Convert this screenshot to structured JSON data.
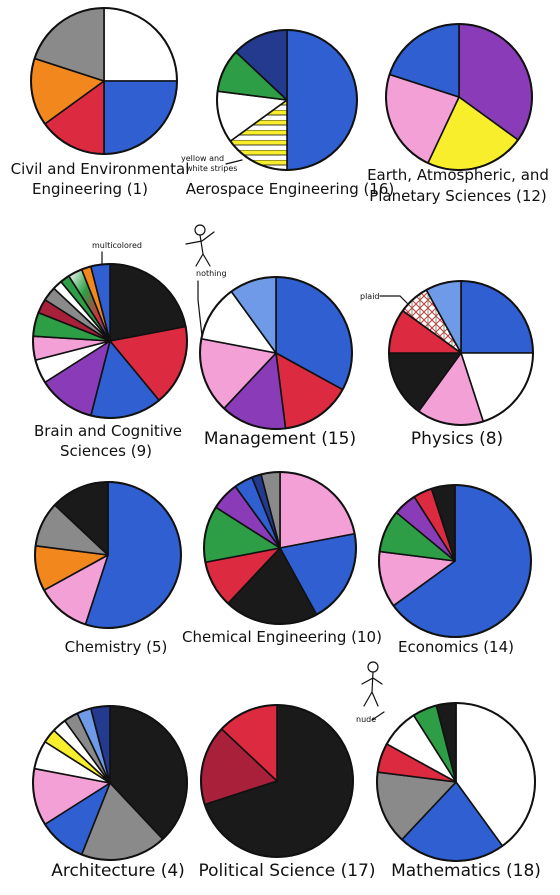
{
  "colors": {
    "white": "#ffffff",
    "gray": "#8a8a8a",
    "orange": "#f2871e",
    "red": "#dc2a40",
    "blue": "#2f5fd0",
    "navy": "#243a8e",
    "green": "#2d9e45",
    "pink": "#f2a0d6",
    "purple": "#8a3cb8",
    "yellow": "#f8ee2c",
    "black": "#1a1a1a",
    "maroon": "#a8203a",
    "lightblue": "#6f9ae8"
  },
  "chart_data": [
    {
      "type": "pie",
      "title": "Civil and Environmental",
      "subtitle": "Engineering (1)",
      "slices": [
        {
          "color": "white",
          "share": 0.25
        },
        {
          "color": "blue",
          "share": 0.25
        },
        {
          "color": "red",
          "share": 0.15
        },
        {
          "color": "orange",
          "share": 0.15
        },
        {
          "color": "gray",
          "share": 0.2
        }
      ]
    },
    {
      "type": "pie",
      "title": "Aerospace Engineering (16)",
      "subtitle": "",
      "annotations": [
        "yellow and",
        "white stripes"
      ],
      "slices": [
        {
          "color": "blue",
          "share": 0.5
        },
        {
          "color": "stripes",
          "share": 0.15
        },
        {
          "color": "white",
          "share": 0.12
        },
        {
          "color": "green",
          "share": 0.1
        },
        {
          "color": "navy",
          "share": 0.13
        }
      ]
    },
    {
      "type": "pie",
      "title": "Earth, Atmospheric, and",
      "subtitle": "Planetary Sciences (12)",
      "slices": [
        {
          "color": "purple",
          "share": 0.35
        },
        {
          "color": "yellow",
          "share": 0.22
        },
        {
          "color": "pink",
          "share": 0.23
        },
        {
          "color": "blue",
          "share": 0.2
        }
      ]
    },
    {
      "type": "pie",
      "title": "Brain and Cognitive",
      "subtitle": "Sciences (9)",
      "annotations": [
        "multicolored"
      ],
      "slices": [
        {
          "color": "black",
          "share": 0.22
        },
        {
          "color": "red",
          "share": 0.17
        },
        {
          "color": "blue",
          "share": 0.15
        },
        {
          "color": "purple",
          "share": 0.12
        },
        {
          "color": "white",
          "share": 0.05
        },
        {
          "color": "pink",
          "share": 0.05
        },
        {
          "color": "green",
          "share": 0.05
        },
        {
          "color": "maroon",
          "share": 0.03
        },
        {
          "color": "gray",
          "share": 0.03
        },
        {
          "color": "white",
          "share": 0.02
        },
        {
          "color": "green",
          "share": 0.02
        },
        {
          "color": "multicolored",
          "share": 0.03
        },
        {
          "color": "orange",
          "share": 0.02
        },
        {
          "color": "blue",
          "share": 0.04
        }
      ]
    },
    {
      "type": "pie",
      "title": "Management (15)",
      "subtitle": "",
      "annotations": [
        "nothing"
      ],
      "slices": [
        {
          "color": "blue",
          "share": 0.33
        },
        {
          "color": "red",
          "share": 0.15
        },
        {
          "color": "purple",
          "share": 0.14
        },
        {
          "color": "pink",
          "share": 0.16
        },
        {
          "color": "white",
          "share": 0.12
        },
        {
          "color": "lightblue",
          "share": 0.1
        }
      ]
    },
    {
      "type": "pie",
      "title": "Physics (8)",
      "subtitle": "",
      "annotations": [
        "plaid"
      ],
      "slices": [
        {
          "color": "blue",
          "share": 0.25
        },
        {
          "color": "white",
          "share": 0.2
        },
        {
          "color": "pink",
          "share": 0.15
        },
        {
          "color": "black",
          "share": 0.15
        },
        {
          "color": "red",
          "share": 0.1
        },
        {
          "color": "plaid",
          "share": 0.07
        },
        {
          "color": "lightblue",
          "share": 0.08
        }
      ]
    },
    {
      "type": "pie",
      "title": "Chemistry (5)",
      "subtitle": "",
      "slices": [
        {
          "color": "blue",
          "share": 0.55
        },
        {
          "color": "pink",
          "share": 0.12
        },
        {
          "color": "orange",
          "share": 0.1
        },
        {
          "color": "gray",
          "share": 0.1
        },
        {
          "color": "black",
          "share": 0.13
        }
      ]
    },
    {
      "type": "pie",
      "title": "Chemical Engineering (10)",
      "subtitle": "",
      "slices": [
        {
          "color": "pink",
          "share": 0.22
        },
        {
          "color": "blue",
          "share": 0.2
        },
        {
          "color": "black",
          "share": 0.2
        },
        {
          "color": "red",
          "share": 0.1
        },
        {
          "color": "green",
          "share": 0.12
        },
        {
          "color": "purple",
          "share": 0.06
        },
        {
          "color": "blue",
          "share": 0.04
        },
        {
          "color": "navy",
          "share": 0.02
        },
        {
          "color": "gray",
          "share": 0.04
        }
      ]
    },
    {
      "type": "pie",
      "title": "Economics (14)",
      "subtitle": "",
      "slices": [
        {
          "color": "blue",
          "share": 0.65
        },
        {
          "color": "pink",
          "share": 0.12
        },
        {
          "color": "green",
          "share": 0.09
        },
        {
          "color": "purple",
          "share": 0.05
        },
        {
          "color": "red",
          "share": 0.04
        },
        {
          "color": "black",
          "share": 0.05
        }
      ]
    },
    {
      "type": "pie",
      "title": "Architecture (4)",
      "subtitle": "",
      "slices": [
        {
          "color": "black",
          "share": 0.38
        },
        {
          "color": "gray",
          "share": 0.18
        },
        {
          "color": "blue",
          "share": 0.1
        },
        {
          "color": "pink",
          "share": 0.12
        },
        {
          "color": "white",
          "share": 0.06
        },
        {
          "color": "yellow",
          "share": 0.03
        },
        {
          "color": "white",
          "share": 0.03
        },
        {
          "color": "gray",
          "share": 0.03
        },
        {
          "color": "lightblue",
          "share": 0.03
        },
        {
          "color": "navy",
          "share": 0.04
        }
      ]
    },
    {
      "type": "pie",
      "title": "Political Science (17)",
      "subtitle": "",
      "slices": [
        {
          "color": "black",
          "share": 0.7
        },
        {
          "color": "maroon",
          "share": 0.17
        },
        {
          "color": "red",
          "share": 0.13
        }
      ]
    },
    {
      "type": "pie",
      "title": "Mathematics (18)",
      "subtitle": "",
      "annotations": [
        "nude"
      ],
      "slices": [
        {
          "color": "white",
          "share": 0.4
        },
        {
          "color": "blue",
          "share": 0.22
        },
        {
          "color": "gray",
          "share": 0.15
        },
        {
          "color": "red",
          "share": 0.06
        },
        {
          "color": "nude",
          "share": 0.08
        },
        {
          "color": "green",
          "share": 0.05
        },
        {
          "color": "black",
          "share": 0.04
        }
      ]
    }
  ]
}
